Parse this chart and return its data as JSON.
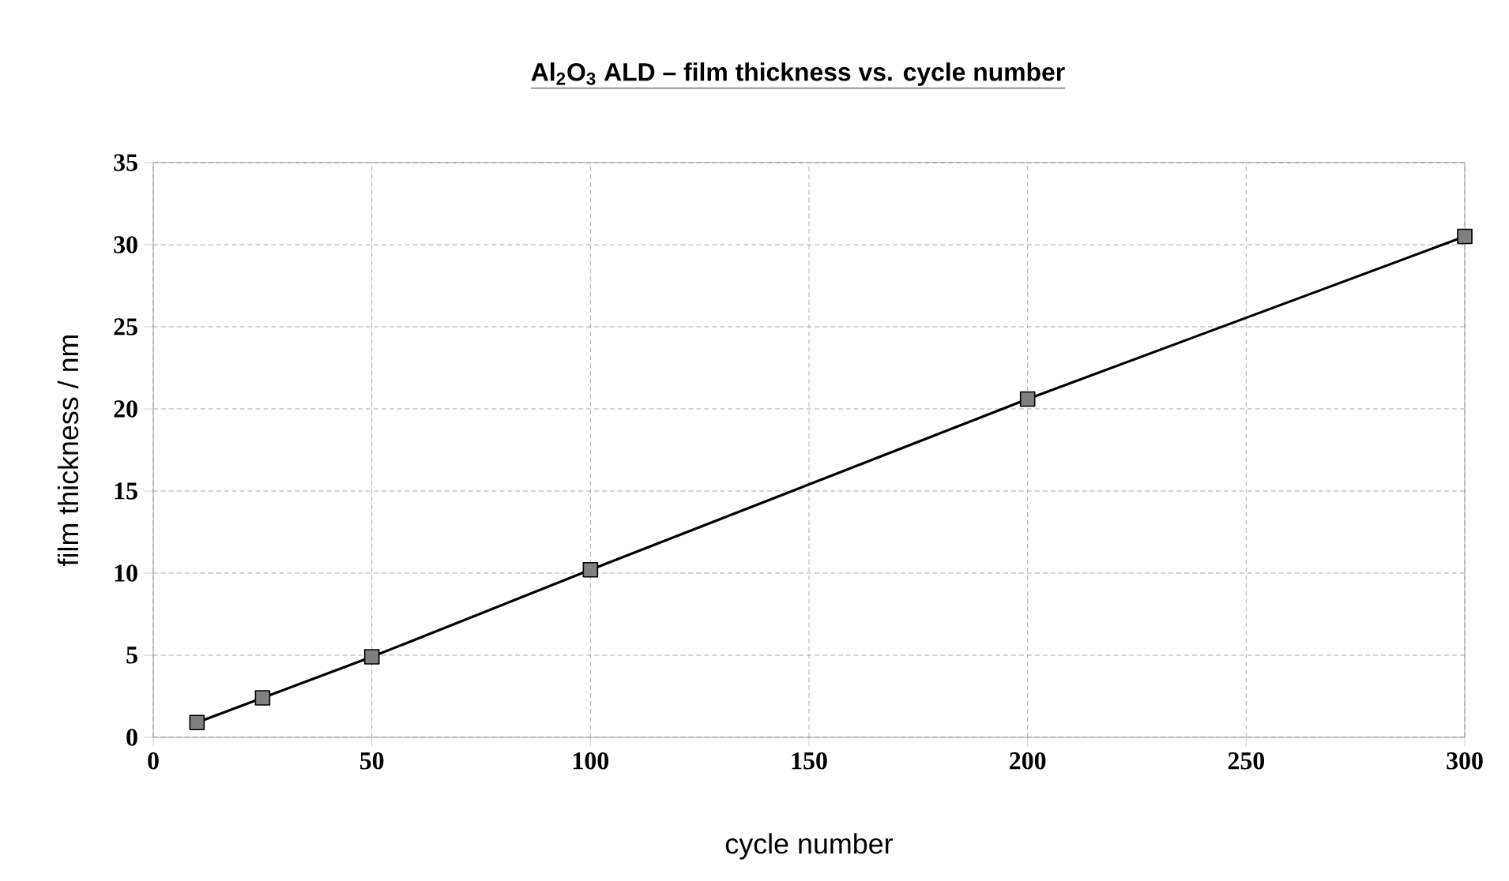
{
  "chart_data": {
    "type": "line",
    "title": "Al$_{2}$O$_{3}$ ALD – film thickness vs. cycle number",
    "xlabel": "cycle number",
    "ylabel": "film thickness / nm",
    "x": [
      10,
      25,
      50,
      100,
      200,
      300
    ],
    "series": [
      {
        "color": "#000000",
        "values": [
          0.9,
          2.4,
          4.9,
          10.2,
          20.6,
          30.5
        ]
      }
    ],
    "xlim": [
      0,
      300
    ],
    "xticks": [
      0,
      50,
      100,
      150,
      200,
      250,
      300
    ],
    "ylim": [
      0,
      35
    ],
    "yticks": [
      0,
      5,
      10,
      15,
      20,
      25,
      30,
      35
    ],
    "grid": true,
    "marker": "square",
    "line_style": "solid"
  }
}
